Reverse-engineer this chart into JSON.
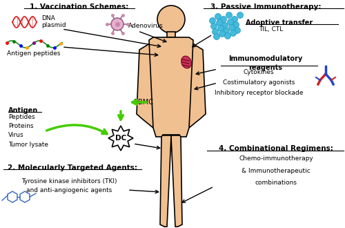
{
  "bg_color": "#ffffff",
  "body_color": "#f0c090",
  "body_outline": "#000000",
  "s1_title": "1. Vaccination Schemes:",
  "s2_title": "2. Molecularly Targeted Agents:",
  "s3_title": "3. Passive Immunotherapy:",
  "s4_title": "4. Combinational Regimens:",
  "adenovirus_text": "Adenovirus",
  "dna_label": "DNA\nplasmid",
  "peptide_label": "Antigen peptides",
  "antigen_label": "Antigen",
  "antigen_items": "Peptides\nProteins\nVirus\nTumor lysate",
  "pbmc_label": "PBMC",
  "dc_label": "DC",
  "adoptive_label": "Adoptive transfer",
  "til_label": "TIL, CTL",
  "immuno_label": "Immunomodulatory\nreagents",
  "cytokines_label": "Cytokines",
  "costim_label": "Costimulatory agonists",
  "inhibit_label": "Inhibitory receptor blockade",
  "tki_label": "Tyrosine kinase inhibitors (TKI)\nand anti-angiogenic agents",
  "chemo_label": "Chemo-immunotherapy",
  "immuno2_label": "& Immunotherapeutic",
  "combo_label": "combinations",
  "green": "#44cc00",
  "cyan": "#44bbdd",
  "red_dna": "#dd2222",
  "green_pep": "#228822",
  "blue_mol": "#3366bb"
}
